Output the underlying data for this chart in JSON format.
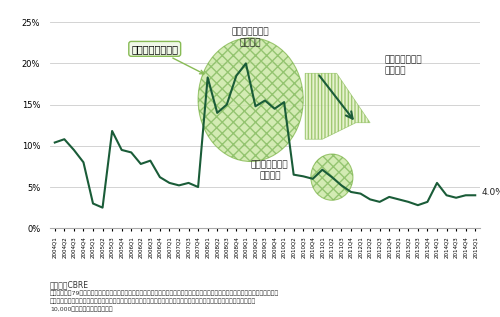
{
  "line_color": "#1a5c38",
  "bg_color": "#ffffff",
  "grid_color": "#cccccc",
  "ylim": [
    0,
    0.25
  ],
  "yticks": [
    0.0,
    0.05,
    0.1,
    0.15,
    0.2,
    0.25
  ],
  "ytick_labels": [
    "0%",
    "5%",
    "10%",
    "15%",
    "20%",
    "25%"
  ],
  "labels": [
    "2004Q1",
    "2004Q2",
    "2004Q3",
    "2004Q4",
    "2005Q1",
    "2005Q2",
    "2005Q3",
    "2005Q4",
    "2006Q1",
    "2006Q2",
    "2006Q3",
    "2006Q4",
    "2007Q1",
    "2007Q2",
    "2007Q3",
    "2007Q4",
    "2008Q1",
    "2008Q2",
    "2008Q3",
    "2008Q4",
    "2009Q1",
    "2009Q2",
    "2009Q3",
    "2009Q4",
    "2010Q1",
    "2010Q2",
    "2010Q3",
    "2010Q4",
    "2011Q1",
    "2011Q2",
    "2011Q3",
    "2011Q4",
    "2012Q1",
    "2012Q2",
    "2012Q3",
    "2012Q4",
    "2013Q1",
    "2013Q2",
    "2013Q3",
    "2013Q4",
    "2014Q1",
    "2014Q2",
    "2014Q3",
    "2014Q4",
    "2015Q1"
  ],
  "values": [
    0.104,
    0.108,
    0.095,
    0.08,
    0.03,
    0.025,
    0.118,
    0.095,
    0.092,
    0.078,
    0.082,
    0.062,
    0.055,
    0.052,
    0.055,
    0.05,
    0.183,
    0.14,
    0.15,
    0.185,
    0.2,
    0.148,
    0.155,
    0.145,
    0.153,
    0.065,
    0.063,
    0.06,
    0.071,
    0.062,
    0.052,
    0.044,
    0.042,
    0.035,
    0.032,
    0.038,
    0.035,
    0.032,
    0.028,
    0.032,
    0.055,
    0.04,
    0.037,
    0.04,
    0.04
  ],
  "annotation_lehman_text": "リーマンショック",
  "annotation_supply_text": "大量供給による\n需給緩和",
  "annotation_quake_text": "震災特需による\n大幅改善",
  "annotation_supply2_text": "供給抑制による\n需給改善",
  "annotation_40_text": "4.0%",
  "source_text": "（出典）CBRE",
  "footnote1": "・調査樿数：79潯　・空室率調査方法：ヒアリングによる　・対象地域：埼玉県、千葉県、東京都、神奈川県　・対象施設：開発当初",
  "footnote2": "、複数テナント利用を前提として企画・設計されており、現時点で複数テナントと不動産賃貸契約を結結している延床面積",
  "footnote3": "10,000嵪以上の建物であること"
}
